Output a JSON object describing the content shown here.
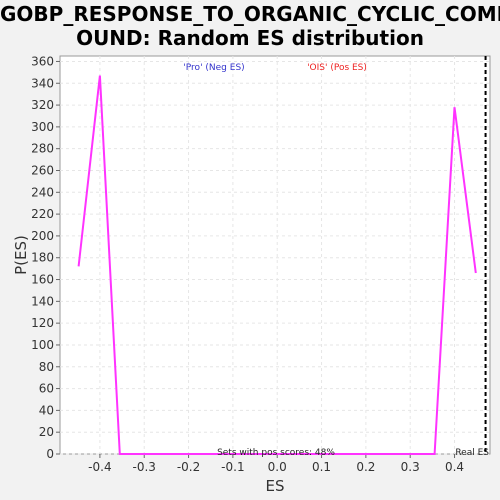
{
  "title_line1": "GOBP_RESPONSE_TO_ORGANIC_CYCLIC_COMP",
  "title_line2": "OUND: Random ES distribution",
  "chart_data": {
    "type": "line",
    "title": "GOBP_RESPONSE_TO_ORGANIC_CYCLIC_COMPOUND: Random ES distribution",
    "xlabel": "ES",
    "ylabel": "P(ES)",
    "xlim": [
      -0.49,
      0.48
    ],
    "ylim": [
      0,
      365
    ],
    "xticks": [
      -0.4,
      -0.3,
      -0.2,
      -0.1,
      0.0,
      0.1,
      0.2,
      0.3,
      0.4
    ],
    "xtick_labels": [
      "-0.4",
      "-0.3",
      "-0.2",
      "-0.1",
      "0.0",
      "0.1",
      "0.2",
      "0.3",
      "0.4"
    ],
    "yticks": [
      0,
      20,
      40,
      60,
      80,
      100,
      120,
      140,
      160,
      180,
      200,
      220,
      240,
      260,
      280,
      300,
      320,
      340,
      360
    ],
    "grid": true,
    "series": [
      {
        "color": "#ff33ff",
        "x": [
          -0.448,
          -0.4,
          -0.355,
          0.355,
          0.4,
          0.448
        ],
        "y": [
          172,
          347,
          0,
          0,
          318,
          166
        ]
      }
    ],
    "real_es": 0.47,
    "annotations": {
      "neg_label": "'Pro' (Neg ES)",
      "neg_color": "#3333cc",
      "pos_label": "'OIS' (Pos ES)",
      "pos_color": "#ee2222",
      "pos_scores_text": "Sets with pos scores: 48%",
      "real_es_label": "Real ES"
    }
  }
}
